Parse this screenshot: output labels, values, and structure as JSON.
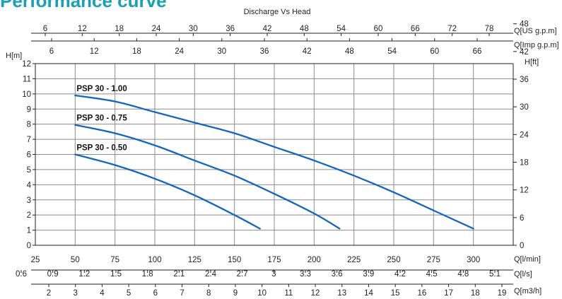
{
  "heading": "Performance curve",
  "chart_data": {
    "type": "line",
    "title": "Discharge Vs Head",
    "colors": {
      "curve": "#1565c0",
      "grid": "#8c8c8c",
      "heading": "#1aa0b4"
    },
    "grid": true,
    "x": {
      "label": "Q[l/min]",
      "range": [
        25,
        325
      ],
      "ticks": [
        25,
        50,
        75,
        100,
        125,
        150,
        175,
        200,
        225,
        250,
        275,
        300
      ]
    },
    "y_left": {
      "label": "H[m]",
      "range": [
        0,
        12
      ],
      "ticks": [
        0,
        1,
        2,
        3,
        4,
        5,
        6,
        7,
        8,
        9,
        10,
        11,
        12
      ]
    },
    "y_right": {
      "label": "H[ft]",
      "ticks": [
        0,
        6,
        12,
        18,
        24,
        30,
        36,
        42,
        48
      ]
    },
    "top_axes": [
      {
        "label": "Q[US g.p.m]",
        "ticks": [
          "6",
          "12",
          "18",
          "24",
          "30",
          "36",
          "42",
          "48",
          "54",
          "60",
          "66",
          "72",
          "78"
        ]
      },
      {
        "label": "Q[Imp g.p.m]",
        "ticks": [
          "6",
          "12",
          "18",
          "24",
          "30",
          "36",
          "42",
          "48",
          "54",
          "60",
          "66"
        ]
      }
    ],
    "bottom_axes": [
      {
        "label": "Q[l/s]",
        "ticks": [
          "0.6",
          "0.9",
          "1.2",
          "1.5",
          "1.8",
          "2.1",
          "2.4",
          "2.7",
          "3",
          "3.3",
          "3.6",
          "3.9",
          "4.2",
          "4.5",
          "4.8",
          "5.1"
        ]
      },
      {
        "label": "Q[m3/h]",
        "ticks": [
          "2",
          "3",
          "4",
          "5",
          "6",
          "7",
          "8",
          "9",
          "10",
          "11",
          "12",
          "13",
          "14",
          "15",
          "16",
          "17",
          "18",
          "19"
        ]
      }
    ],
    "series": [
      {
        "name": "PSP 30 - 1.00",
        "x": [
          50,
          75,
          100,
          125,
          150,
          175,
          200,
          225,
          250,
          275,
          300
        ],
        "y": [
          9.9,
          9.5,
          8.8,
          8.1,
          7.4,
          6.5,
          5.6,
          4.6,
          3.5,
          2.3,
          1.1
        ]
      },
      {
        "name": "PSP 30 - 0.75",
        "x": [
          50,
          75,
          100,
          125,
          150,
          175,
          200,
          216
        ],
        "y": [
          7.95,
          7.4,
          6.6,
          5.6,
          4.6,
          3.4,
          2.1,
          1.1
        ]
      },
      {
        "name": "PSP 30 - 0.50",
        "x": [
          50,
          75,
          100,
          125,
          150,
          166
        ],
        "y": [
          6.0,
          5.3,
          4.4,
          3.3,
          2.0,
          1.1
        ]
      }
    ]
  }
}
